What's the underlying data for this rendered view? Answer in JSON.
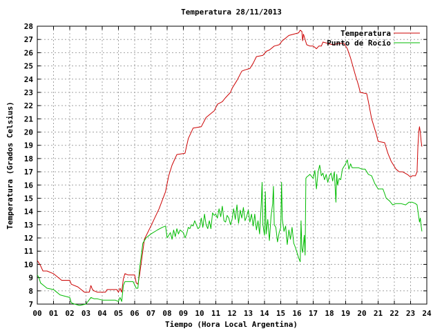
{
  "chart_data": {
    "type": "line",
    "title": "Temperatura 28/11/2013",
    "xlabel": "Tiempo (Hora Local Argentina)",
    "ylabel": "Temperatura (Grados Celsius)",
    "xlim": [
      0,
      24
    ],
    "ylim": [
      7,
      28
    ],
    "x_ticks": [
      "00",
      "01",
      "02",
      "03",
      "04",
      "05",
      "06",
      "07",
      "08",
      "09",
      "10",
      "11",
      "12",
      "13",
      "14",
      "15",
      "16",
      "17",
      "18",
      "19",
      "20",
      "21",
      "22",
      "23",
      "24"
    ],
    "y_ticks": [
      7,
      8,
      9,
      10,
      11,
      12,
      13,
      14,
      15,
      16,
      17,
      18,
      19,
      20,
      21,
      22,
      23,
      24,
      25,
      26,
      27,
      28
    ],
    "grid": true,
    "legend_position": "top-right",
    "series": [
      {
        "name": "Temperatura",
        "color": "#cc0000",
        "points": [
          [
            0.0,
            10.3
          ],
          [
            0.1,
            10.1
          ],
          [
            0.2,
            9.9
          ],
          [
            0.35,
            9.5
          ],
          [
            0.6,
            9.5
          ],
          [
            1.0,
            9.3
          ],
          [
            1.3,
            9.0
          ],
          [
            1.5,
            8.8
          ],
          [
            2.0,
            8.8
          ],
          [
            2.1,
            8.5
          ],
          [
            2.5,
            8.3
          ],
          [
            2.7,
            8.1
          ],
          [
            2.9,
            7.9
          ],
          [
            3.2,
            7.9
          ],
          [
            3.3,
            8.4
          ],
          [
            3.4,
            8.1
          ],
          [
            3.5,
            8.0
          ],
          [
            3.7,
            7.9
          ],
          [
            4.0,
            7.9
          ],
          [
            4.2,
            7.9
          ],
          [
            4.3,
            8.1
          ],
          [
            4.5,
            8.1
          ],
          [
            4.9,
            8.1
          ],
          [
            5.0,
            7.9
          ],
          [
            5.1,
            8.2
          ],
          [
            5.2,
            7.9
          ],
          [
            5.3,
            8.9
          ],
          [
            5.4,
            9.3
          ],
          [
            5.6,
            9.2
          ],
          [
            5.8,
            9.2
          ],
          [
            6.0,
            9.2
          ],
          [
            6.1,
            8.6
          ],
          [
            6.2,
            8.5
          ],
          [
            6.3,
            9.2
          ],
          [
            6.5,
            11.0
          ],
          [
            6.6,
            11.9
          ],
          [
            7.0,
            12.9
          ],
          [
            7.5,
            14.2
          ],
          [
            7.9,
            15.5
          ],
          [
            8.1,
            16.7
          ],
          [
            8.3,
            17.5
          ],
          [
            8.6,
            18.3
          ],
          [
            9.1,
            18.4
          ],
          [
            9.3,
            19.5
          ],
          [
            9.6,
            20.3
          ],
          [
            10.1,
            20.4
          ],
          [
            10.4,
            21.1
          ],
          [
            10.9,
            21.6
          ],
          [
            11.1,
            22.1
          ],
          [
            11.4,
            22.3
          ],
          [
            11.6,
            22.6
          ],
          [
            11.9,
            23.0
          ],
          [
            12.0,
            23.3
          ],
          [
            12.3,
            23.9
          ],
          [
            12.6,
            24.6
          ],
          [
            12.8,
            24.7
          ],
          [
            13.1,
            24.8
          ],
          [
            13.3,
            25.2
          ],
          [
            13.5,
            25.7
          ],
          [
            13.9,
            25.8
          ],
          [
            14.1,
            26.1
          ],
          [
            14.3,
            26.2
          ],
          [
            14.6,
            26.5
          ],
          [
            14.9,
            26.6
          ],
          [
            15.1,
            26.9
          ],
          [
            15.3,
            27.1
          ],
          [
            15.5,
            27.3
          ],
          [
            15.8,
            27.4
          ],
          [
            16.1,
            27.5
          ],
          [
            16.2,
            27.7
          ],
          [
            16.3,
            27.6
          ],
          [
            16.35,
            26.9
          ],
          [
            16.4,
            27.4
          ],
          [
            16.6,
            26.6
          ],
          [
            16.8,
            26.5
          ],
          [
            17.0,
            26.5
          ],
          [
            17.2,
            26.3
          ],
          [
            17.35,
            26.5
          ],
          [
            17.5,
            26.5
          ],
          [
            17.6,
            26.8
          ],
          [
            17.9,
            26.7
          ],
          [
            18.2,
            26.6
          ],
          [
            18.6,
            26.7
          ],
          [
            18.9,
            26.7
          ],
          [
            19.1,
            26.3
          ],
          [
            19.3,
            25.6
          ],
          [
            19.6,
            24.3
          ],
          [
            19.8,
            23.5
          ],
          [
            19.9,
            23.0
          ],
          [
            20.3,
            22.9
          ],
          [
            20.4,
            22.3
          ],
          [
            20.6,
            21.0
          ],
          [
            20.8,
            20.2
          ],
          [
            20.9,
            19.8
          ],
          [
            21.0,
            19.3
          ],
          [
            21.4,
            19.2
          ],
          [
            21.6,
            18.4
          ],
          [
            21.8,
            17.8
          ],
          [
            22.1,
            17.2
          ],
          [
            22.3,
            17.0
          ],
          [
            22.5,
            17.0
          ],
          [
            22.8,
            16.8
          ],
          [
            23.0,
            16.6
          ],
          [
            23.1,
            16.7
          ],
          [
            23.3,
            16.7
          ],
          [
            23.4,
            17.0
          ],
          [
            23.45,
            18.9
          ],
          [
            23.5,
            20.0
          ],
          [
            23.55,
            20.4
          ],
          [
            23.6,
            20.0
          ],
          [
            23.65,
            19.3
          ],
          [
            23.7,
            18.9
          ]
        ]
      },
      {
        "name": "Punto de Rocío",
        "color": "#00bb00",
        "points": [
          [
            0.0,
            9.2
          ],
          [
            0.1,
            9.0
          ],
          [
            0.2,
            8.6
          ],
          [
            0.4,
            8.4
          ],
          [
            0.6,
            8.2
          ],
          [
            1.0,
            8.1
          ],
          [
            1.2,
            7.9
          ],
          [
            1.4,
            7.7
          ],
          [
            1.7,
            7.6
          ],
          [
            2.0,
            7.5
          ],
          [
            2.1,
            7.1
          ],
          [
            2.3,
            7.0
          ],
          [
            2.6,
            6.9
          ],
          [
            3.0,
            7.0
          ],
          [
            3.3,
            7.5
          ],
          [
            3.5,
            7.4
          ],
          [
            3.7,
            7.4
          ],
          [
            4.0,
            7.3
          ],
          [
            4.3,
            7.3
          ],
          [
            4.6,
            7.3
          ],
          [
            4.8,
            7.3
          ],
          [
            5.0,
            7.2
          ],
          [
            5.1,
            7.5
          ],
          [
            5.2,
            7.2
          ],
          [
            5.3,
            8.4
          ],
          [
            5.4,
            8.7
          ],
          [
            5.6,
            8.7
          ],
          [
            5.9,
            8.7
          ],
          [
            6.1,
            8.2
          ],
          [
            6.2,
            8.2
          ],
          [
            6.3,
            9.7
          ],
          [
            6.4,
            10.6
          ],
          [
            6.5,
            11.6
          ],
          [
            6.7,
            12.0
          ],
          [
            7.0,
            12.3
          ],
          [
            7.4,
            12.6
          ],
          [
            7.7,
            12.8
          ],
          [
            7.9,
            12.9
          ],
          [
            8.0,
            12.0
          ],
          [
            8.2,
            12.4
          ],
          [
            8.3,
            11.9
          ],
          [
            8.4,
            12.6
          ],
          [
            8.5,
            12.1
          ],
          [
            8.6,
            12.7
          ],
          [
            8.7,
            12.3
          ],
          [
            8.8,
            12.6
          ],
          [
            9.0,
            12.4
          ],
          [
            9.1,
            12.0
          ],
          [
            9.2,
            12.3
          ],
          [
            9.3,
            12.8
          ],
          [
            9.4,
            12.7
          ],
          [
            9.5,
            13.0
          ],
          [
            9.6,
            12.9
          ],
          [
            9.7,
            13.3
          ],
          [
            9.8,
            13.0
          ],
          [
            9.9,
            12.7
          ],
          [
            10.0,
            12.8
          ],
          [
            10.1,
            13.5
          ],
          [
            10.2,
            12.8
          ],
          [
            10.3,
            13.8
          ],
          [
            10.4,
            13.0
          ],
          [
            10.5,
            12.7
          ],
          [
            10.6,
            13.3
          ],
          [
            10.7,
            12.7
          ],
          [
            10.8,
            13.9
          ],
          [
            10.9,
            13.7
          ],
          [
            11.0,
            13.8
          ],
          [
            11.1,
            13.5
          ],
          [
            11.2,
            14.2
          ],
          [
            11.3,
            13.6
          ],
          [
            11.4,
            14.4
          ],
          [
            11.5,
            13.3
          ],
          [
            11.6,
            13.2
          ],
          [
            11.7,
            13.7
          ],
          [
            11.8,
            13.5
          ],
          [
            11.9,
            13.0
          ],
          [
            12.0,
            13.4
          ],
          [
            12.1,
            14.2
          ],
          [
            12.2,
            13.4
          ],
          [
            12.3,
            14.5
          ],
          [
            12.4,
            13.1
          ],
          [
            12.5,
            14.1
          ],
          [
            12.6,
            13.5
          ],
          [
            12.7,
            14.3
          ],
          [
            12.8,
            13.3
          ],
          [
            12.9,
            13.6
          ],
          [
            13.0,
            14.1
          ],
          [
            13.1,
            13.2
          ],
          [
            13.2,
            13.8
          ],
          [
            13.3,
            12.9
          ],
          [
            13.4,
            13.8
          ],
          [
            13.5,
            12.6
          ],
          [
            13.6,
            13.3
          ],
          [
            13.7,
            12.3
          ],
          [
            13.8,
            14.6
          ],
          [
            13.85,
            16.2
          ],
          [
            13.9,
            13.0
          ],
          [
            14.0,
            12.2
          ],
          [
            14.05,
            15.5
          ],
          [
            14.1,
            12.3
          ],
          [
            14.2,
            13.4
          ],
          [
            14.3,
            11.8
          ],
          [
            14.4,
            13.6
          ],
          [
            14.5,
            14.6
          ],
          [
            14.55,
            15.9
          ],
          [
            14.6,
            13.0
          ],
          [
            14.7,
            12.8
          ],
          [
            14.8,
            11.7
          ],
          [
            14.9,
            12.4
          ],
          [
            15.0,
            12.8
          ],
          [
            15.05,
            16.2
          ],
          [
            15.1,
            13.4
          ],
          [
            15.2,
            12.5
          ],
          [
            15.3,
            12.9
          ],
          [
            15.4,
            11.5
          ],
          [
            15.5,
            12.6
          ],
          [
            15.6,
            11.9
          ],
          [
            15.7,
            12.8
          ],
          [
            15.8,
            11.6
          ],
          [
            15.9,
            11.3
          ],
          [
            16.0,
            10.9
          ],
          [
            16.1,
            10.5
          ],
          [
            16.2,
            10.2
          ],
          [
            16.25,
            13.3
          ],
          [
            16.3,
            11.2
          ],
          [
            16.35,
            10.9
          ],
          [
            16.4,
            11.5
          ],
          [
            16.45,
            12.2
          ],
          [
            16.5,
            10.7
          ],
          [
            16.55,
            16.5
          ],
          [
            16.6,
            16.6
          ],
          [
            16.8,
            16.8
          ],
          [
            17.0,
            16.5
          ],
          [
            17.1,
            17.1
          ],
          [
            17.2,
            15.7
          ],
          [
            17.3,
            17.0
          ],
          [
            17.4,
            17.5
          ],
          [
            17.5,
            16.7
          ],
          [
            17.6,
            16.9
          ],
          [
            17.7,
            16.4
          ],
          [
            17.8,
            16.8
          ],
          [
            17.9,
            16.2
          ],
          [
            18.0,
            16.7
          ],
          [
            18.1,
            16.9
          ],
          [
            18.2,
            16.3
          ],
          [
            18.3,
            17.0
          ],
          [
            18.4,
            14.7
          ],
          [
            18.45,
            16.8
          ],
          [
            18.5,
            16.0
          ],
          [
            18.6,
            16.5
          ],
          [
            18.7,
            16.4
          ],
          [
            18.8,
            17.2
          ],
          [
            18.9,
            17.4
          ],
          [
            19.0,
            17.6
          ],
          [
            19.1,
            17.9
          ],
          [
            19.2,
            17.2
          ],
          [
            19.3,
            17.6
          ],
          [
            19.4,
            17.3
          ],
          [
            19.6,
            17.3
          ],
          [
            19.8,
            17.3
          ],
          [
            20.0,
            17.2
          ],
          [
            20.2,
            17.2
          ],
          [
            20.4,
            16.8
          ],
          [
            20.6,
            16.7
          ],
          [
            20.8,
            16.1
          ],
          [
            21.0,
            15.7
          ],
          [
            21.3,
            15.7
          ],
          [
            21.5,
            15.0
          ],
          [
            21.7,
            14.8
          ],
          [
            21.9,
            14.5
          ],
          [
            22.1,
            14.6
          ],
          [
            22.4,
            14.6
          ],
          [
            22.7,
            14.5
          ],
          [
            22.9,
            14.7
          ],
          [
            23.1,
            14.7
          ],
          [
            23.3,
            14.6
          ],
          [
            23.4,
            14.5
          ],
          [
            23.5,
            13.6
          ],
          [
            23.55,
            13.2
          ],
          [
            23.6,
            13.5
          ],
          [
            23.65,
            12.9
          ],
          [
            23.7,
            12.5
          ]
        ]
      }
    ]
  }
}
